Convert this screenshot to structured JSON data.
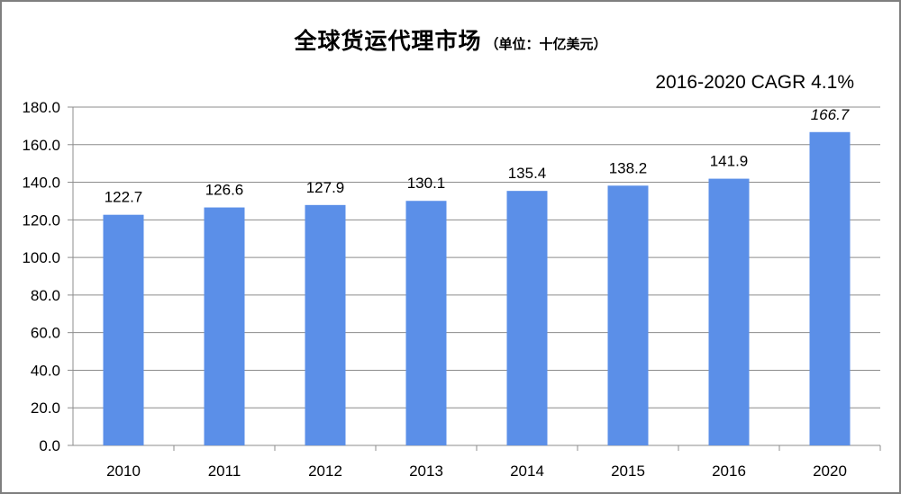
{
  "chart_data": {
    "type": "bar",
    "title": "全球货运代理市场",
    "unit_note": "（单位：十亿美元）",
    "annotation": "2016-2020 CAGR 4.1%",
    "categories": [
      "2010",
      "2011",
      "2012",
      "2013",
      "2014",
      "2015",
      "2016",
      "2020"
    ],
    "values": [
      122.7,
      126.6,
      127.9,
      130.1,
      135.4,
      138.2,
      141.9,
      166.7
    ],
    "data_labels": [
      "122.7",
      "126.6",
      "127.9",
      "130.1",
      "135.4",
      "138.2",
      "141.9",
      "166.7"
    ],
    "italic_labels": [
      "2020"
    ],
    "ylim": [
      0,
      180
    ],
    "yticks": [
      0,
      20,
      40,
      60,
      80,
      100,
      120,
      140,
      160,
      180
    ],
    "ytick_labels": [
      "0.0",
      "20.0",
      "40.0",
      "60.0",
      "80.0",
      "100.0",
      "120.0",
      "140.0",
      "160.0",
      "180.0"
    ],
    "grid": true,
    "bar_color": "#5b8fe8",
    "grid_color": "#8c8c8c"
  }
}
